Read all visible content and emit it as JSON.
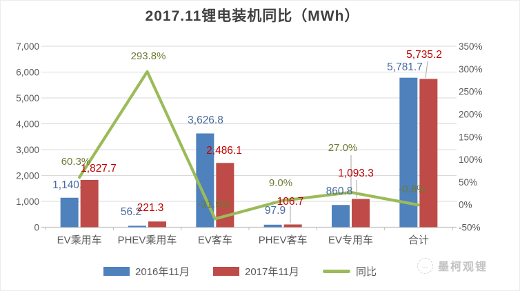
{
  "title": "2017.11锂电装机同比（MWh）",
  "watermark": {
    "text": "墨柯观锂"
  },
  "legend": {
    "items": [
      {
        "label": "2016年11月",
        "color": "#4F81BD",
        "shape": "rect"
      },
      {
        "label": "2017年11月",
        "color": "#BE4B48",
        "shape": "rect"
      },
      {
        "label": "同比",
        "color": "#9BBB59",
        "shape": "line"
      }
    ]
  },
  "chart_data": {
    "type": "bar",
    "subtype": "bar-line-combo",
    "title": "2017.11锂电装机同比（MWh）",
    "categories": [
      "EV乘用车",
      "PHEV乘用车",
      "EV客车",
      "PHEV客车",
      "EV专用车",
      "合计"
    ],
    "series": [
      {
        "name": "2016年11月",
        "type": "bar",
        "axis": "left",
        "color": "#4F81BD",
        "values": [
          1140.0,
          56.2,
          3626.8,
          97.9,
          860.8,
          5781.7
        ],
        "labels": [
          "1,140.0",
          "56.2",
          "3,626.8",
          "97.9",
          "860.8",
          "5,781.7"
        ],
        "label_color": "#46699F"
      },
      {
        "name": "2017年11月",
        "type": "bar",
        "axis": "left",
        "color": "#BE4B48",
        "values": [
          1827.7,
          221.3,
          2486.1,
          106.7,
          1093.3,
          5735.2
        ],
        "labels": [
          "1,827.7",
          "221.3",
          "2,486.1",
          "106.7",
          "1,093.3",
          "5,735.2"
        ],
        "label_color": "#C00000"
      },
      {
        "name": "同比",
        "type": "line",
        "axis": "right",
        "color": "#9BBB59",
        "values": [
          60.3,
          293.8,
          -31.5,
          9.0,
          27.0,
          -0.8
        ],
        "labels": [
          "60.3%",
          "293.8%",
          "-31.5%",
          "9.0%",
          "27.0%",
          "-0.8%"
        ],
        "label_color": "#6C7B33"
      }
    ],
    "left_axis": {
      "min": 0,
      "max": 7000,
      "step": 1000,
      "tick_labels": [
        "0",
        "1,000",
        "2,000",
        "3,000",
        "4,000",
        "5,000",
        "6,000",
        "7,000"
      ]
    },
    "right_axis": {
      "min": -50,
      "max": 350,
      "step": 50,
      "tick_labels": [
        "-50%",
        "0%",
        "50%",
        "100%",
        "150%",
        "200%",
        "250%",
        "300%",
        "350%"
      ]
    },
    "grid": true,
    "legend_position": "bottom"
  }
}
